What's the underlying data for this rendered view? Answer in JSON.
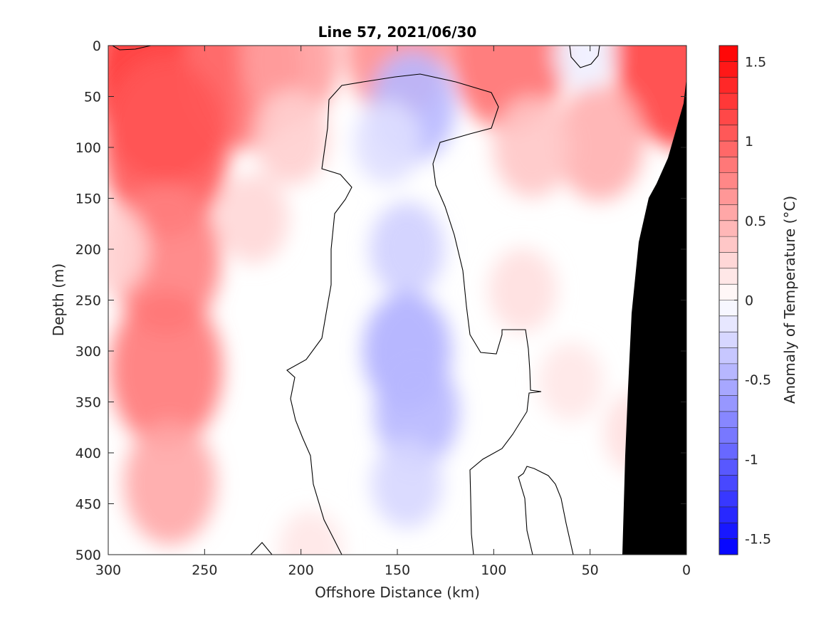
{
  "chart_data": {
    "type": "heatmap",
    "title": "Line 57, 2021/06/30",
    "xlabel": "Offshore Distance (km)",
    "ylabel": "Depth (m)",
    "xlim": [
      300,
      0
    ],
    "ylim": [
      0,
      500
    ],
    "x_reversed": true,
    "y_reversed": true,
    "xticks": [
      300,
      250,
      200,
      150,
      100,
      50,
      0
    ],
    "yticks": [
      0,
      50,
      100,
      150,
      200,
      250,
      300,
      350,
      400,
      450,
      500
    ],
    "colorbar": {
      "label": "Anomaly of Temperature (°C)",
      "limits": [
        -1.6,
        1.6
      ],
      "levels": 32,
      "ticks": [
        -1.5,
        -1,
        -0.5,
        0,
        0.5,
        1,
        1.5
      ],
      "colormap": "blue-white-red",
      "low_color": "#0000ff",
      "high_color": "#ff0000",
      "mid_color": "#ffffff"
    },
    "bathymetry_color": "#000000",
    "contour_level": 0,
    "anomaly_features": [
      {
        "kind": "warm",
        "x": 270,
        "y": 33,
        "value": 1.3
      },
      {
        "kind": "warm",
        "x": 230,
        "y": 22,
        "value": 0.9
      },
      {
        "kind": "warm",
        "x": 205,
        "y": 15,
        "value": 0.6
      },
      {
        "kind": "warm",
        "x": 150,
        "y": 4,
        "value": 0.7
      },
      {
        "kind": "warm",
        "x": 92,
        "y": 5,
        "value": 0.9
      },
      {
        "kind": "warm",
        "x": 2,
        "y": 5,
        "value": 1.2
      },
      {
        "kind": "warm",
        "x": 270,
        "y": 100,
        "value": 1.05
      },
      {
        "kind": "warm",
        "x": 270,
        "y": 210,
        "value": 0.8
      },
      {
        "kind": "warm",
        "x": 270,
        "y": 318,
        "value": 0.85
      },
      {
        "kind": "warm",
        "x": 268,
        "y": 430,
        "value": 0.55
      },
      {
        "kind": "warm",
        "x": 298,
        "y": 200,
        "value": 0.25
      },
      {
        "kind": "warm",
        "x": 225,
        "y": 170,
        "value": 0.25
      },
      {
        "kind": "warm",
        "x": 205,
        "y": 90,
        "value": 0.3
      },
      {
        "kind": "warm",
        "x": 45,
        "y": 95,
        "value": 0.5
      },
      {
        "kind": "warm",
        "x": 80,
        "y": 100,
        "value": 0.35
      },
      {
        "kind": "warm",
        "x": 85,
        "y": 240,
        "value": 0.2
      },
      {
        "kind": "warm",
        "x": 60,
        "y": 330,
        "value": 0.15
      },
      {
        "kind": "warm",
        "x": 25,
        "y": 380,
        "value": 0.2
      },
      {
        "kind": "warm",
        "x": 195,
        "y": 495,
        "value": 0.15
      },
      {
        "kind": "cool",
        "x": 142,
        "y": 60,
        "value": -0.45
      },
      {
        "kind": "cool",
        "x": 155,
        "y": 95,
        "value": -0.2
      },
      {
        "kind": "cool",
        "x": 145,
        "y": 200,
        "value": -0.3
      },
      {
        "kind": "cool",
        "x": 145,
        "y": 300,
        "value": -0.5
      },
      {
        "kind": "cool",
        "x": 140,
        "y": 360,
        "value": -0.45
      },
      {
        "kind": "cool",
        "x": 145,
        "y": 430,
        "value": -0.25
      },
      {
        "kind": "cool",
        "x": 53,
        "y": 8,
        "value": -0.1
      }
    ]
  }
}
